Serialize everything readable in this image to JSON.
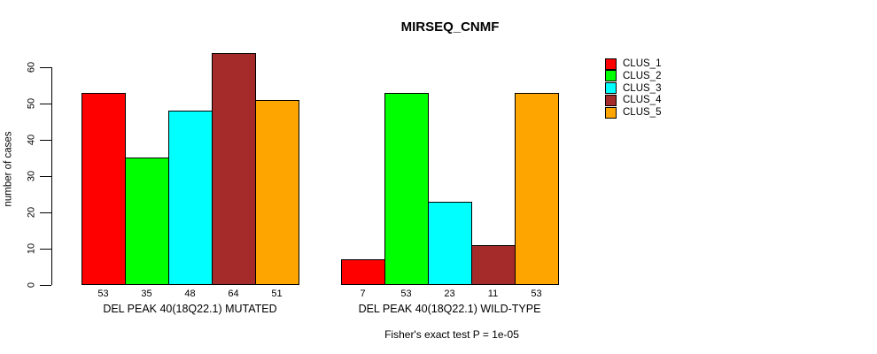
{
  "chart_data": {
    "type": "bar",
    "title": "MIRSEQ_CNMF",
    "ylabel": "number of cases",
    "xlabel": "",
    "ylim": [
      0,
      60
    ],
    "yticks": [
      0,
      10,
      20,
      30,
      40,
      50,
      60
    ],
    "grid": false,
    "legend_position": "right",
    "bar_value_labels": true,
    "categories": [
      "DEL PEAK 40(18Q22.1) MUTATED",
      "DEL PEAK 40(18Q22.1) WILD-TYPE"
    ],
    "series": [
      {
        "name": "CLUS_1",
        "color": "#FF0000",
        "values": [
          53,
          7
        ]
      },
      {
        "name": "CLUS_2",
        "color": "#00FF00",
        "values": [
          35,
          53
        ]
      },
      {
        "name": "CLUS_3",
        "color": "#00FFFF",
        "values": [
          48,
          23
        ]
      },
      {
        "name": "CLUS_4",
        "color": "#A52A2A",
        "values": [
          64,
          11
        ]
      },
      {
        "name": "CLUS_5",
        "color": "#FFA500",
        "values": [
          51,
          53
        ]
      }
    ],
    "annotation": "Fisher's exact test P = 1e-05"
  }
}
